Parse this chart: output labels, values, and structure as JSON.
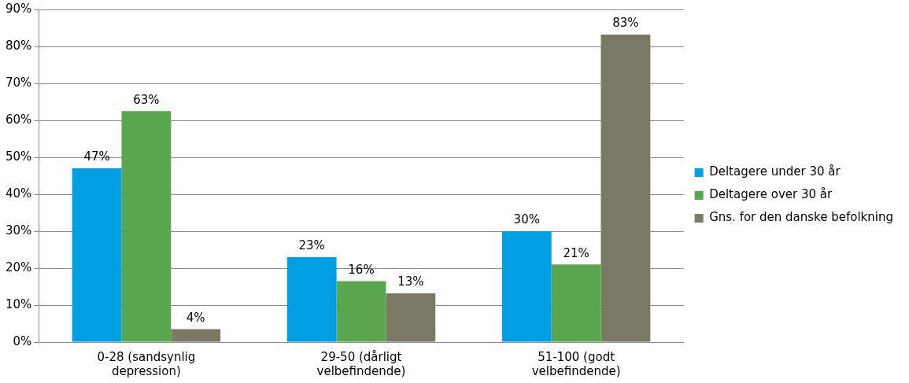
{
  "chart_data": {
    "type": "bar",
    "categories": [
      "0-28 (sandsynlig depression)",
      "29-50 (dårligt velbefindende)",
      "51-100 (godt velbefindende)"
    ],
    "series": [
      {
        "name": "Deltagere under 30 år",
        "color": "#009fe3",
        "values": [
          47,
          23,
          30
        ],
        "value_labels": [
          "47%",
          "23%",
          "30%"
        ]
      },
      {
        "name": "Deltagere over 30 år",
        "color": "#5aa64e",
        "values": [
          62.5,
          16.5,
          21
        ],
        "value_labels": [
          "63%",
          "16%",
          "21%"
        ]
      },
      {
        "name": "Gns. for den danske befolkning",
        "color": "#7a7966",
        "values": [
          3.5,
          13.2,
          83.2
        ],
        "value_labels": [
          "4%",
          "13%",
          "83%"
        ]
      }
    ],
    "ylim": [
      0,
      90
    ],
    "yticks": [
      {
        "value": 0,
        "label": "0%"
      },
      {
        "value": 10,
        "label": "10%"
      },
      {
        "value": 20,
        "label": "20%"
      },
      {
        "value": 30,
        "label": "30%"
      },
      {
        "value": 40,
        "label": "40%"
      },
      {
        "value": 50,
        "label": "50%"
      },
      {
        "value": 60,
        "label": "60%"
      },
      {
        "value": 70,
        "label": "70%"
      },
      {
        "value": 80,
        "label": "80%"
      },
      {
        "value": 90,
        "label": "90%"
      }
    ],
    "grid": "y",
    "legend": "right"
  }
}
